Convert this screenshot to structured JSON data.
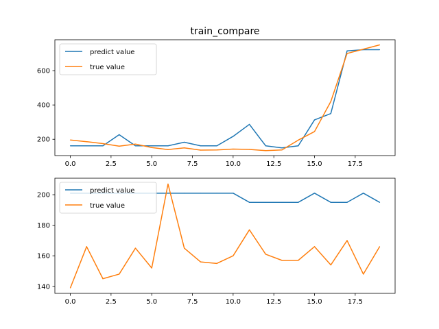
{
  "chart_data": [
    {
      "type": "line",
      "title": "train_compare",
      "xlabel": "",
      "ylabel": "",
      "xlim": [
        -0.95,
        19.95
      ],
      "ylim": [
        105,
        780
      ],
      "xticks": [
        0.0,
        2.5,
        5.0,
        7.5,
        10.0,
        12.5,
        15.0,
        17.5
      ],
      "xtick_labels": [
        "0.0",
        "2.5",
        "5.0",
        "7.5",
        "10.0",
        "12.5",
        "15.0",
        "17.5"
      ],
      "yticks": [
        200,
        400,
        600
      ],
      "ytick_labels": [
        "200",
        "400",
        "600"
      ],
      "legend_position": "upper-left",
      "x": [
        0,
        1,
        2,
        3,
        4,
        5,
        6,
        7,
        8,
        9,
        10,
        11,
        12,
        13,
        14,
        15,
        16,
        17,
        18,
        19
      ],
      "series": [
        {
          "name": "predict value",
          "color": "#1f77b4",
          "values": [
            162,
            162,
            162,
            227,
            162,
            162,
            162,
            183,
            162,
            162,
            217,
            287,
            162,
            150,
            162,
            313,
            350,
            715,
            722,
            722
          ]
        },
        {
          "name": "true value",
          "color": "#ff7f0e",
          "values": [
            196,
            186,
            175,
            160,
            172,
            152,
            140,
            150,
            137,
            138,
            143,
            141,
            134,
            138,
            195,
            245,
            420,
            700,
            725,
            750
          ]
        }
      ]
    },
    {
      "type": "line",
      "title": "",
      "xlabel": "",
      "ylabel": "",
      "xlim": [
        -0.95,
        19.95
      ],
      "ylim": [
        135.4,
        210.8
      ],
      "xticks": [
        0.0,
        2.5,
        5.0,
        7.5,
        10.0,
        12.5,
        15.0,
        17.5
      ],
      "xtick_labels": [
        "0.0",
        "2.5",
        "5.0",
        "7.5",
        "10.0",
        "12.5",
        "15.0",
        "17.5"
      ],
      "yticks": [
        140,
        160,
        180,
        200
      ],
      "ytick_labels": [
        "140",
        "160",
        "180",
        "200"
      ],
      "legend_position": "upper-left",
      "x": [
        0,
        1,
        2,
        3,
        4,
        5,
        6,
        7,
        8,
        9,
        10,
        11,
        12,
        13,
        14,
        15,
        16,
        17,
        18,
        19
      ],
      "series": [
        {
          "name": "predict value",
          "color": "#1f77b4",
          "values": [
            201,
            201,
            201,
            201,
            201,
            201,
            201,
            201,
            201,
            201,
            201,
            195,
            195,
            195,
            195,
            201,
            195,
            195,
            201,
            195
          ]
        },
        {
          "name": "true value",
          "color": "#ff7f0e",
          "values": [
            139,
            166,
            145,
            148,
            165,
            152,
            207,
            165,
            156,
            155,
            160,
            177,
            161,
            157,
            157,
            166,
            154,
            170,
            148,
            166
          ]
        }
      ]
    }
  ]
}
